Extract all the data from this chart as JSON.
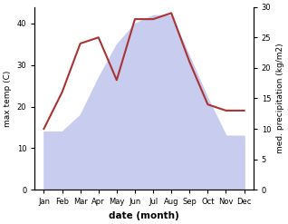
{
  "months": [
    "Jan",
    "Feb",
    "Mar",
    "Apr",
    "May",
    "Jun",
    "Jul",
    "Aug",
    "Sep",
    "Oct",
    "Nov",
    "Dec"
  ],
  "max_temp": [
    14,
    14,
    18,
    27,
    35,
    40,
    42,
    42,
    32,
    22,
    13,
    13
  ],
  "precipitation": [
    10,
    16,
    24,
    25,
    18,
    28,
    28,
    29,
    21,
    14,
    13,
    13
  ],
  "temp_color_fill": "#c8ccee",
  "precip_color": "#aa3333",
  "left_ylabel": "max temp (C)",
  "right_ylabel": "med. precipitation (kg/m2)",
  "xlabel": "date (month)",
  "left_ylim": [
    0,
    44
  ],
  "right_ylim": [
    0,
    30
  ],
  "left_yticks": [
    0,
    10,
    20,
    30,
    40
  ],
  "right_yticks": [
    0,
    5,
    10,
    15,
    20,
    25,
    30
  ],
  "figsize": [
    3.18,
    2.47
  ],
  "dpi": 100
}
